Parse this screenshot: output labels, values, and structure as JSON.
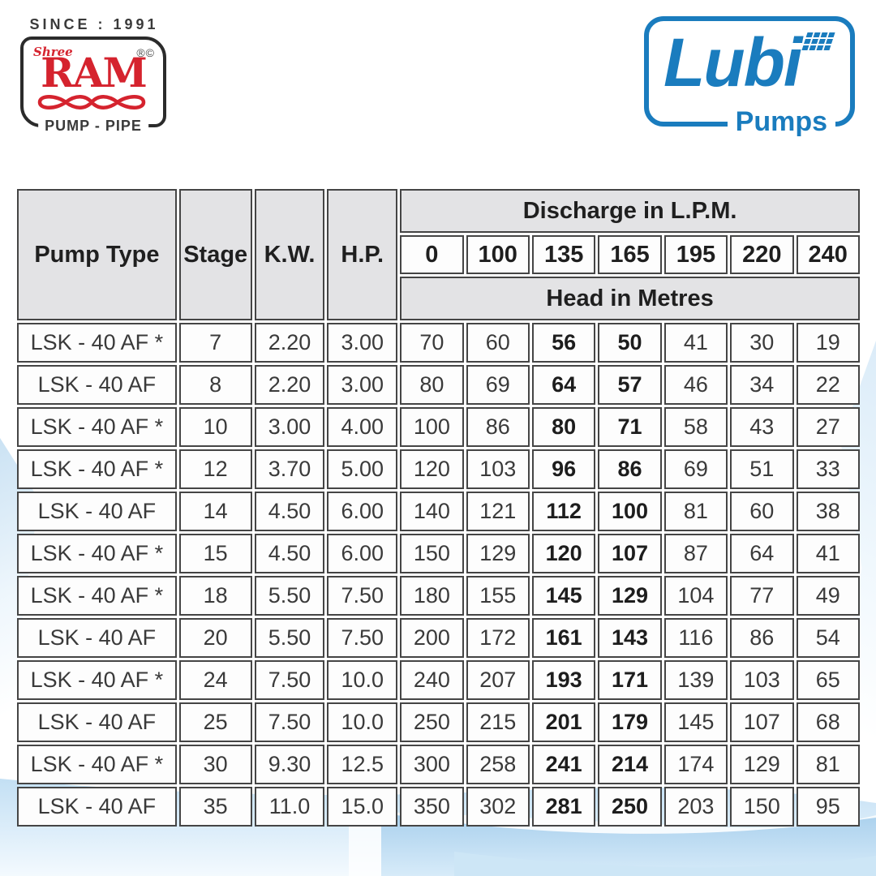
{
  "branding": {
    "since_label": "SINCE : 1991",
    "shree_ram": {
      "shree": "Shree",
      "ram": "RAM",
      "marks": "®©",
      "tagline": "PUMP - PIPE"
    },
    "lubi": {
      "name": "Lubi",
      "subtitle": "Pumps"
    }
  },
  "colors": {
    "brand_red": "#d5232e",
    "brand_blue": "#1a7cbe",
    "header_gray": "#e3e3e5",
    "table_border": "#454545",
    "wave_blue": "#a9d0ed"
  },
  "table": {
    "col_pump_type": "Pump Type",
    "col_stage": "Stage",
    "col_kw": "K.W.",
    "col_hp": "H.P.",
    "discharge_header": "Discharge in L.P.M.",
    "head_header": "Head in Metres",
    "discharge_values": [
      "0",
      "100",
      "135",
      "165",
      "195",
      "220",
      "240"
    ],
    "bold_head_columns": [
      2,
      3
    ],
    "rows": [
      {
        "pump": "LSK - 40 AF  *",
        "stage": "7",
        "kw": "2.20",
        "hp": "3.00",
        "heads": [
          "70",
          "60",
          "56",
          "50",
          "41",
          "30",
          "19"
        ]
      },
      {
        "pump": "LSK - 40 AF",
        "stage": "8",
        "kw": "2.20",
        "hp": "3.00",
        "heads": [
          "80",
          "69",
          "64",
          "57",
          "46",
          "34",
          "22"
        ]
      },
      {
        "pump": "LSK - 40 AF  *",
        "stage": "10",
        "kw": "3.00",
        "hp": "4.00",
        "heads": [
          "100",
          "86",
          "80",
          "71",
          "58",
          "43",
          "27"
        ]
      },
      {
        "pump": "LSK - 40 AF  *",
        "stage": "12",
        "kw": "3.70",
        "hp": "5.00",
        "heads": [
          "120",
          "103",
          "96",
          "86",
          "69",
          "51",
          "33"
        ]
      },
      {
        "pump": "LSK - 40 AF",
        "stage": "14",
        "kw": "4.50",
        "hp": "6.00",
        "heads": [
          "140",
          "121",
          "112",
          "100",
          "81",
          "60",
          "38"
        ]
      },
      {
        "pump": "LSK - 40 AF  *",
        "stage": "15",
        "kw": "4.50",
        "hp": "6.00",
        "heads": [
          "150",
          "129",
          "120",
          "107",
          "87",
          "64",
          "41"
        ]
      },
      {
        "pump": "LSK - 40 AF  *",
        "stage": "18",
        "kw": "5.50",
        "hp": "7.50",
        "heads": [
          "180",
          "155",
          "145",
          "129",
          "104",
          "77",
          "49"
        ]
      },
      {
        "pump": "LSK - 40 AF",
        "stage": "20",
        "kw": "5.50",
        "hp": "7.50",
        "heads": [
          "200",
          "172",
          "161",
          "143",
          "116",
          "86",
          "54"
        ]
      },
      {
        "pump": "LSK - 40 AF  *",
        "stage": "24",
        "kw": "7.50",
        "hp": "10.0",
        "heads": [
          "240",
          "207",
          "193",
          "171",
          "139",
          "103",
          "65"
        ]
      },
      {
        "pump": "LSK - 40 AF",
        "stage": "25",
        "kw": "7.50",
        "hp": "10.0",
        "heads": [
          "250",
          "215",
          "201",
          "179",
          "145",
          "107",
          "68"
        ]
      },
      {
        "pump": "LSK - 40 AF  *",
        "stage": "30",
        "kw": "9.30",
        "hp": "12.5",
        "heads": [
          "300",
          "258",
          "241",
          "214",
          "174",
          "129",
          "81"
        ]
      },
      {
        "pump": "LSK - 40 AF",
        "stage": "35",
        "kw": "11.0",
        "hp": "15.0",
        "heads": [
          "350",
          "302",
          "281",
          "250",
          "203",
          "150",
          "95"
        ]
      }
    ]
  }
}
